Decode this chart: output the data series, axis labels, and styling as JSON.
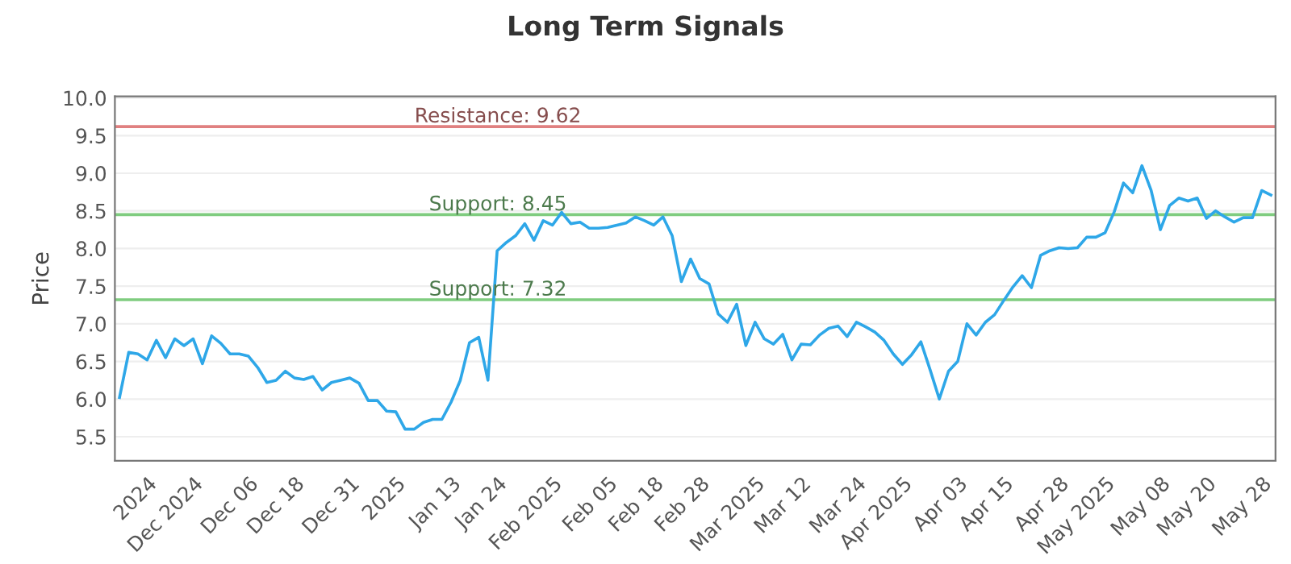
{
  "chart_data": {
    "type": "line",
    "title": "Long Term Signals",
    "ylabel": "Price",
    "categories": [
      null,
      null,
      null,
      "2024",
      null,
      null,
      null,
      null,
      "Dec 2024",
      null,
      null,
      null,
      null,
      null,
      "Dec 06",
      null,
      null,
      null,
      null,
      "Dec 18",
      null,
      null,
      null,
      null,
      null,
      "Dec 31",
      null,
      null,
      null,
      null,
      "2025",
      null,
      null,
      null,
      null,
      null,
      "Jan 13",
      null,
      null,
      null,
      null,
      "Jan 24",
      null,
      null,
      null,
      null,
      null,
      "Feb 2025",
      null,
      null,
      null,
      null,
      null,
      "Feb 05",
      null,
      null,
      null,
      null,
      "Feb 18",
      null,
      null,
      null,
      null,
      "Feb 28",
      null,
      null,
      null,
      null,
      null,
      "Mar 2025",
      null,
      null,
      null,
      null,
      "Mar 12",
      null,
      null,
      null,
      null,
      null,
      "Mar 24",
      null,
      null,
      null,
      null,
      "Apr 2025",
      null,
      null,
      null,
      null,
      null,
      "Apr 03",
      null,
      null,
      null,
      null,
      "Apr 15",
      null,
      null,
      null,
      null,
      null,
      "Apr 28",
      null,
      null,
      null,
      null,
      "May 2025",
      null,
      null,
      null,
      null,
      null,
      "May 08",
      null,
      null,
      null,
      null,
      "May 20",
      null,
      null,
      null,
      null,
      null,
      "May 28",
      null
    ],
    "series": [
      {
        "color": "#2ea7e8",
        "values": [
          6.02,
          6.62,
          6.6,
          6.52,
          6.78,
          6.55,
          6.8,
          6.71,
          6.8,
          6.47,
          6.84,
          6.74,
          6.6,
          6.6,
          6.57,
          6.42,
          6.22,
          6.25,
          6.37,
          6.28,
          6.26,
          6.3,
          6.12,
          6.22,
          6.25,
          6.28,
          6.21,
          5.98,
          5.98,
          5.84,
          5.83,
          5.6,
          5.6,
          5.69,
          5.73,
          5.73,
          5.96,
          6.25,
          6.75,
          6.82,
          6.25,
          7.97,
          8.08,
          8.17,
          8.33,
          8.11,
          8.37,
          8.31,
          8.48,
          8.33,
          8.35,
          8.27,
          8.27,
          8.28,
          8.31,
          8.34,
          8.42,
          8.37,
          8.31,
          8.42,
          8.17,
          7.56,
          7.86,
          7.6,
          7.53,
          7.13,
          7.02,
          7.26,
          6.71,
          7.02,
          6.8,
          6.73,
          6.86,
          6.52,
          6.73,
          6.72,
          6.85,
          6.94,
          6.97,
          6.83,
          7.02,
          6.96,
          6.89,
          6.78,
          6.6,
          6.46,
          6.59,
          6.76,
          6.39,
          6.0,
          6.37,
          6.5,
          7.0,
          6.85,
          7.02,
          7.12,
          7.31,
          7.49,
          7.64,
          7.48,
          7.91,
          7.97,
          8.01,
          8.0,
          8.01,
          8.15,
          8.15,
          8.21,
          8.49,
          8.87,
          8.74,
          9.1,
          8.77,
          8.25,
          8.57,
          8.67,
          8.63,
          8.67,
          8.4,
          8.5,
          8.42,
          8.35,
          8.41,
          8.41,
          8.77,
          8.71
        ]
      }
    ],
    "ylim": [
      5.18,
      10.02
    ],
    "yticks": [
      {
        "value": 5.5,
        "label": "5.5"
      },
      {
        "value": 6.0,
        "label": "6.0"
      },
      {
        "value": 6.5,
        "label": "6.5"
      },
      {
        "value": 7.0,
        "label": "7.0"
      },
      {
        "value": 7.5,
        "label": "7.5"
      },
      {
        "value": 8.0,
        "label": "8.0"
      },
      {
        "value": 8.5,
        "label": "8.5"
      },
      {
        "value": 9.0,
        "label": "9.0"
      },
      {
        "value": 9.5,
        "label": "9.5"
      },
      {
        "value": 10.0,
        "label": "10.0"
      }
    ],
    "grid": "y",
    "ref_lines": [
      {
        "axis": "y",
        "value": 9.62,
        "label": "Resistance: 9.62",
        "color": "#e08080"
      },
      {
        "axis": "y",
        "value": 8.45,
        "label": "Support: 8.45",
        "color": "#7fcc7f"
      },
      {
        "axis": "y",
        "value": 7.32,
        "label": "Support: 7.32",
        "color": "#7fcc7f"
      }
    ]
  }
}
